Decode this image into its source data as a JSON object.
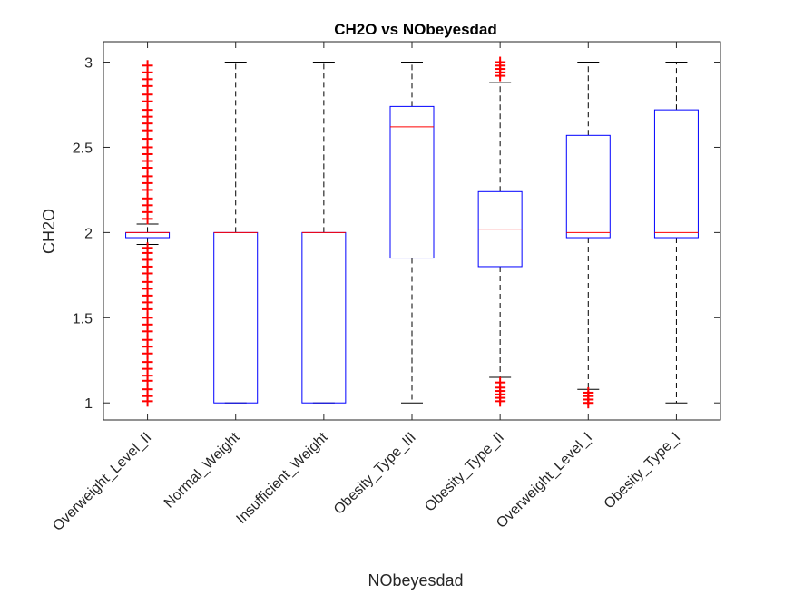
{
  "chart_data": {
    "type": "box",
    "title": "CH2O vs NObeyesdad",
    "xlabel": "NObeyesdad",
    "ylabel": "CH2O",
    "ylim": [
      0.9,
      3.12
    ],
    "yticks": [
      1,
      1.5,
      2,
      2.5,
      3
    ],
    "ytick_labels": [
      "1",
      "1.5",
      "2",
      "2.5",
      "3"
    ],
    "grid": false,
    "colors": {
      "box": "#0000ff",
      "median": "#ff0000",
      "whisker": "#000000",
      "outlier": "#ff0000",
      "axes": "#262626"
    },
    "categories": [
      "Overweight_Level_II",
      "Normal_Weight",
      "Insufficient_Weight",
      "Obesity_Type_III",
      "Obesity_Type_II",
      "Overweight_Level_I",
      "Obesity_Type_I"
    ],
    "boxes": [
      {
        "category": "Overweight_Level_II",
        "q1": 1.97,
        "median": 2.0,
        "q3": 2.0,
        "whisker_low": 1.93,
        "whisker_high": 2.05,
        "outliers": [
          1.01,
          1.04,
          1.08,
          1.13,
          1.16,
          1.2,
          1.24,
          1.29,
          1.33,
          1.37,
          1.42,
          1.46,
          1.5,
          1.55,
          1.59,
          1.63,
          1.67,
          1.71,
          1.76,
          1.8,
          1.84,
          1.88,
          1.91,
          2.08,
          2.12,
          2.16,
          2.2,
          2.25,
          2.29,
          2.33,
          2.38,
          2.42,
          2.46,
          2.5,
          2.55,
          2.6,
          2.64,
          2.68,
          2.72,
          2.77,
          2.81,
          2.86,
          2.9,
          2.94,
          2.98
        ]
      },
      {
        "category": "Normal_Weight",
        "q1": 1.0,
        "median": 2.0,
        "q3": 2.0,
        "whisker_low": 1.0,
        "whisker_high": 3.0,
        "outliers": []
      },
      {
        "category": "Insufficient_Weight",
        "q1": 1.0,
        "median": 2.0,
        "q3": 2.0,
        "whisker_low": 1.0,
        "whisker_high": 3.0,
        "outliers": []
      },
      {
        "category": "Obesity_Type_III",
        "q1": 1.85,
        "median": 2.62,
        "q3": 2.74,
        "whisker_low": 1.0,
        "whisker_high": 3.0,
        "outliers": []
      },
      {
        "category": "Obesity_Type_II",
        "q1": 1.8,
        "median": 2.02,
        "q3": 2.24,
        "whisker_low": 1.15,
        "whisker_high": 2.88,
        "outliers": [
          1.01,
          1.03,
          1.05,
          1.07,
          1.09,
          1.12,
          2.92,
          2.94,
          2.96,
          2.98,
          3.0
        ]
      },
      {
        "category": "Overweight_Level_I",
        "q1": 1.97,
        "median": 2.0,
        "q3": 2.57,
        "whisker_low": 1.08,
        "whisker_high": 3.0,
        "outliers": [
          1.0,
          1.02,
          1.04,
          1.06
        ]
      },
      {
        "category": "Obesity_Type_I",
        "q1": 1.97,
        "median": 2.0,
        "q3": 2.72,
        "whisker_low": 1.0,
        "whisker_high": 3.0,
        "outliers": []
      }
    ]
  }
}
